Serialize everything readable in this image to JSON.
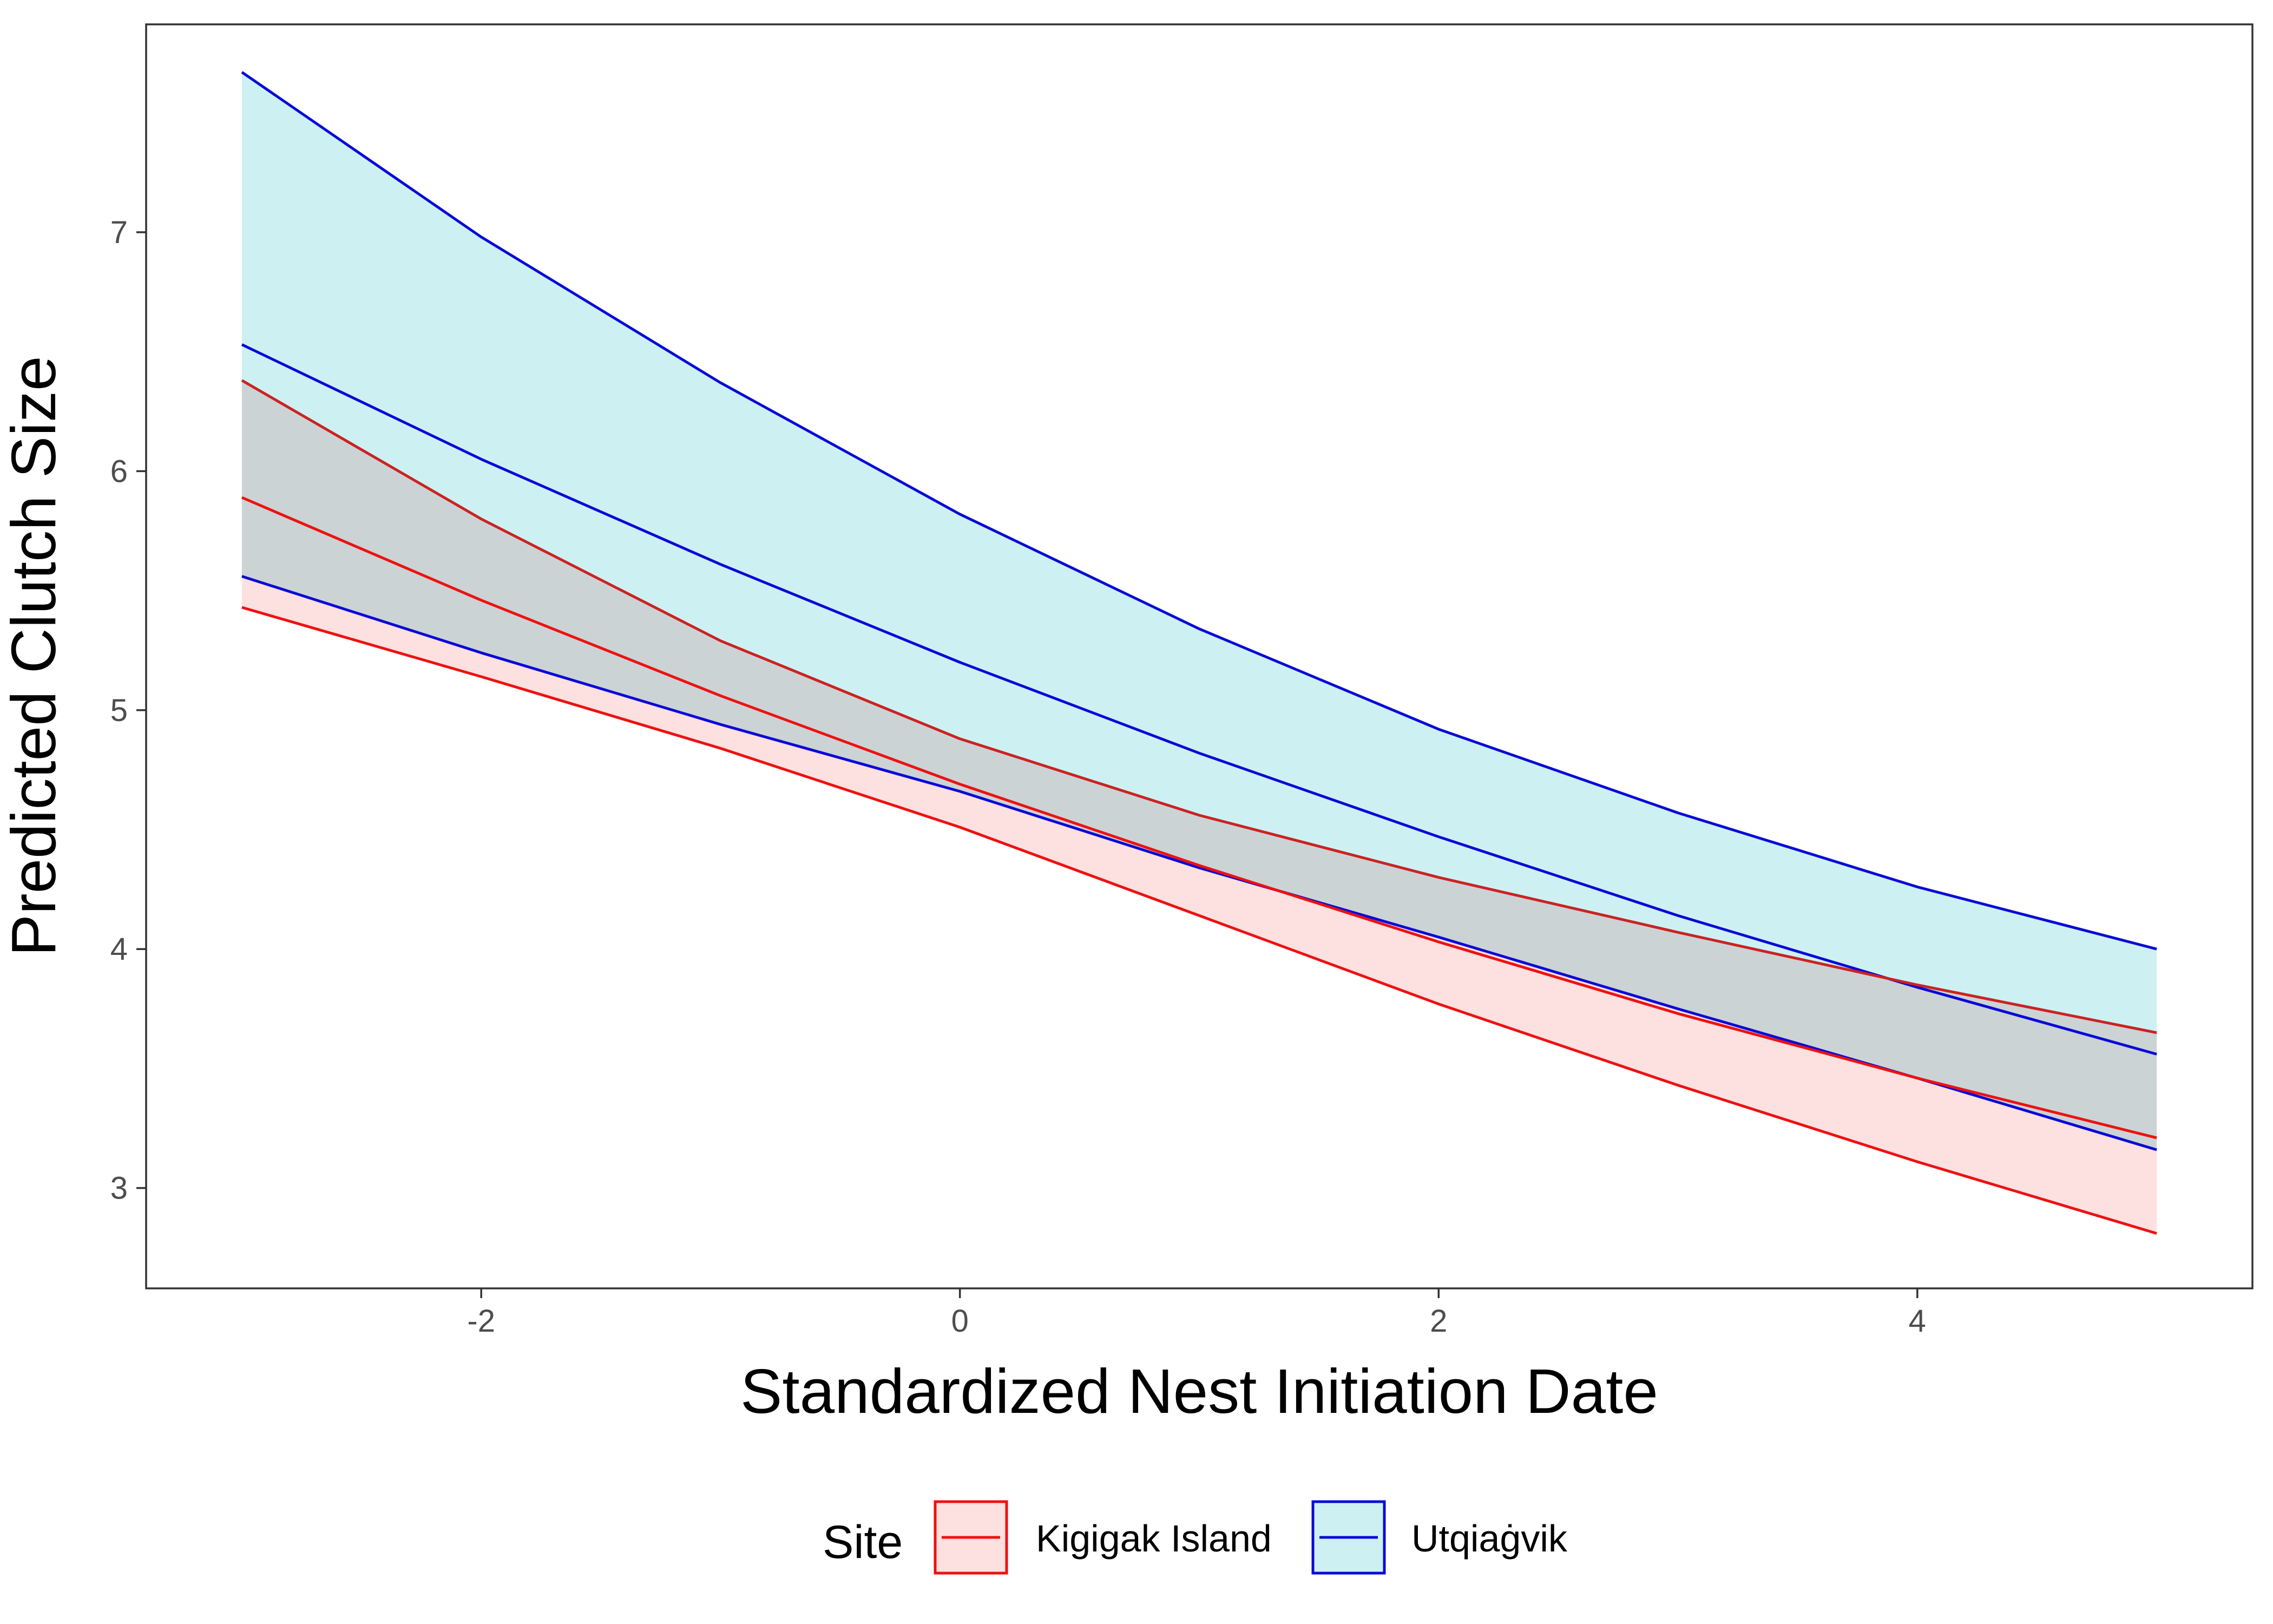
{
  "chart_data": {
    "type": "line",
    "xlabel": "Standardized Nest Initiation Date",
    "ylabel": "Predicted Clutch Size",
    "xlim": [
      -3.4,
      5.4
    ],
    "ylim": [
      2.58,
      7.87
    ],
    "x_ticks": [
      -2,
      0,
      2,
      4
    ],
    "y_ticks": [
      3,
      4,
      5,
      6,
      7
    ],
    "x_tick_labels": [
      "-2",
      "0",
      "2",
      "4"
    ],
    "y_tick_labels": [
      "3",
      "4",
      "5",
      "6",
      "7"
    ],
    "grid": false,
    "legend_title": "Site",
    "legend_position": "bottom",
    "x": [
      -3,
      -2,
      -1,
      0,
      1,
      2,
      3,
      4,
      5
    ],
    "series": [
      {
        "name": "Kigigak Island",
        "color": "#e41a1c",
        "line_color": "#ee1111",
        "fill": "#fde0e0",
        "fit": [
          5.89,
          5.46,
          5.06,
          4.69,
          4.35,
          4.03,
          3.73,
          3.46,
          3.21
        ],
        "lower": [
          5.43,
          5.14,
          4.84,
          4.51,
          4.14,
          3.77,
          3.43,
          3.11,
          2.81
        ],
        "upper": [
          6.38,
          5.8,
          5.29,
          4.88,
          4.56,
          4.3,
          4.07,
          3.85,
          3.65
        ]
      },
      {
        "name": "Utqiaġvik",
        "color": "#0000dd",
        "line_color": "#0a0ad8",
        "fill": "#cdf1f3",
        "fit": [
          6.53,
          6.05,
          5.61,
          5.2,
          4.82,
          4.47,
          4.14,
          3.84,
          3.56
        ],
        "lower": [
          5.56,
          5.24,
          4.94,
          4.66,
          4.34,
          4.05,
          3.75,
          3.46,
          3.16
        ],
        "upper": [
          7.67,
          6.98,
          6.37,
          5.82,
          5.34,
          4.92,
          4.57,
          4.26,
          4.0
        ]
      }
    ],
    "overlap_fill": "#cddcdc"
  }
}
